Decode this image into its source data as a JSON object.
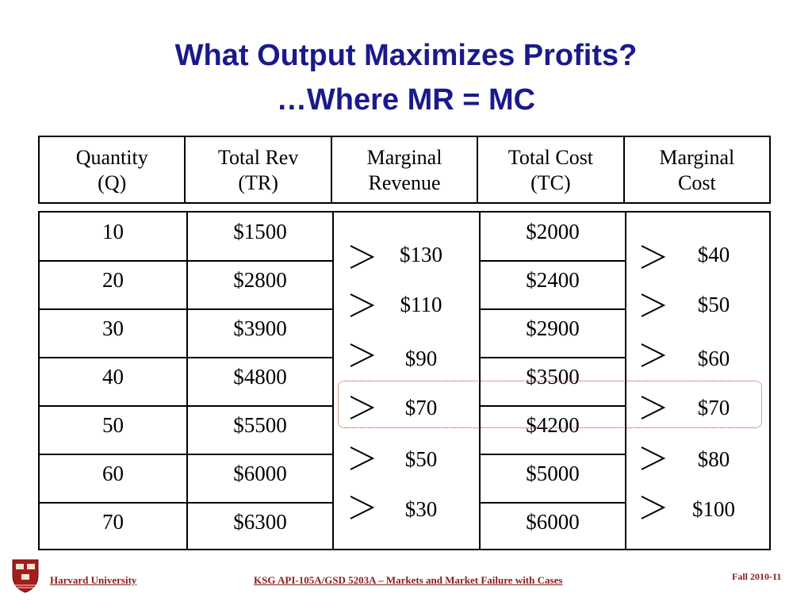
{
  "title": {
    "line1": "What Output Maximizes Profits?",
    "line2": "…Where MR = MC"
  },
  "table": {
    "headers": [
      [
        "Quantity",
        "(Q)"
      ],
      [
        "Total Rev",
        "(TR)"
      ],
      [
        "Marginal",
        "Revenue"
      ],
      [
        "Total Cost",
        "(TC)"
      ],
      [
        "Marginal",
        "Cost"
      ]
    ],
    "rows": [
      {
        "q": "10",
        "tr": "$1500",
        "tc": "$2000"
      },
      {
        "q": "20",
        "tr": "$2800",
        "tc": "$2400"
      },
      {
        "q": "30",
        "tr": "$3900",
        "tc": "$2900"
      },
      {
        "q": "40",
        "tr": "$4800",
        "tc": "$3500"
      },
      {
        "q": "50",
        "tr": "$5500",
        "tc": "$4200"
      },
      {
        "q": "60",
        "tr": "$6000",
        "tc": "$5000"
      },
      {
        "q": "70",
        "tr": "$6300",
        "tc": "$6000"
      }
    ],
    "marginal_revenue": [
      "$130",
      "$110",
      "$90",
      "$70",
      "$50",
      "$30"
    ],
    "marginal_cost": [
      "$40",
      "$50",
      "$60",
      "$70",
      "$80",
      "$100"
    ]
  },
  "footer": {
    "institution": "Harvard University",
    "course": "KSG API-105A/GSD 5203A – Markets and Market Failure with Cases",
    "term": "Fall 2010-11"
  },
  "colors": {
    "title": "#1a1a8c",
    "footer": "#8b1a1a",
    "highlight": "#d03030"
  }
}
